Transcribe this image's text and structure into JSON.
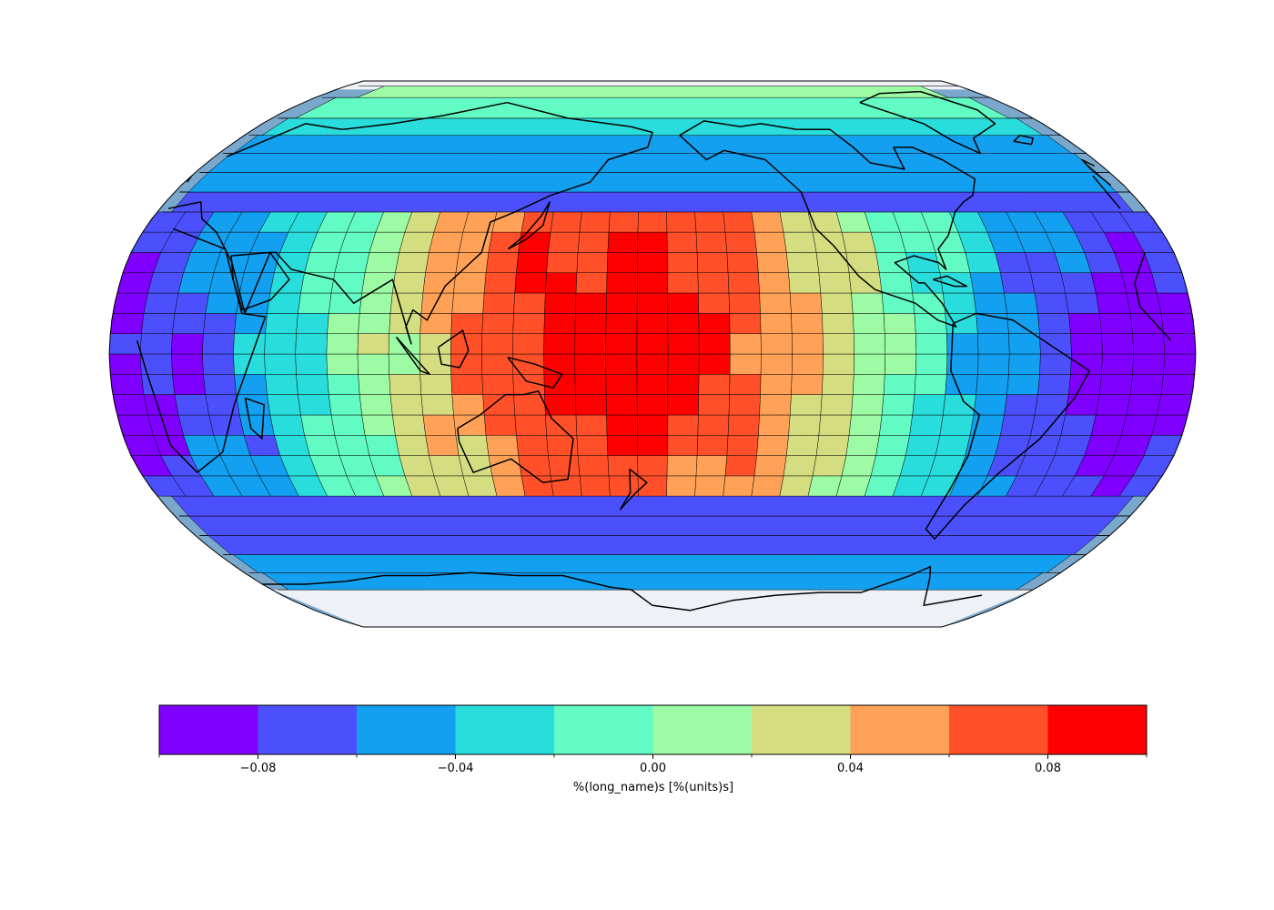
{
  "figure": {
    "projection": "robinson",
    "central_longitude": 180,
    "ocean_color": "#7aa7cc",
    "ice_color": "#eef2f7",
    "land_color": "#e2ddc8",
    "coastline_color": "#000000",
    "mesh_edge_color": "#000000"
  },
  "chart_data": {
    "type": "heatmap",
    "title": "",
    "colormap": "rainbow",
    "vmin": -0.1,
    "vmax": 0.1,
    "bin_edges": [
      -0.1,
      -0.08,
      -0.06,
      -0.04,
      -0.02,
      0.0,
      0.02,
      0.04,
      0.06,
      0.08,
      0.1
    ],
    "bin_colors": [
      "#8000ff",
      "#4c50fc",
      "#13a0f0",
      "#2adddd",
      "#62fbc4",
      "#9cfba4",
      "#d4dd80",
      "#ffa157",
      "#ff5029",
      "#ff0000"
    ],
    "anomaly_center": {
      "lon": 170,
      "lat": 5
    },
    "colorbar": {
      "orientation": "horizontal",
      "ticks": [
        {
          "value": -0.08,
          "label": "−0.08"
        },
        {
          "value": -0.04,
          "label": "−0.04"
        },
        {
          "value": 0.0,
          "label": "0.00"
        },
        {
          "value": 0.04,
          "label": "0.04"
        },
        {
          "value": 0.08,
          "label": "0.08"
        }
      ],
      "minor_ticks": [
        -0.1,
        -0.06,
        -0.02,
        0.02,
        0.06,
        0.1
      ],
      "label": "%(long_name)s [%(units)s]"
    }
  }
}
